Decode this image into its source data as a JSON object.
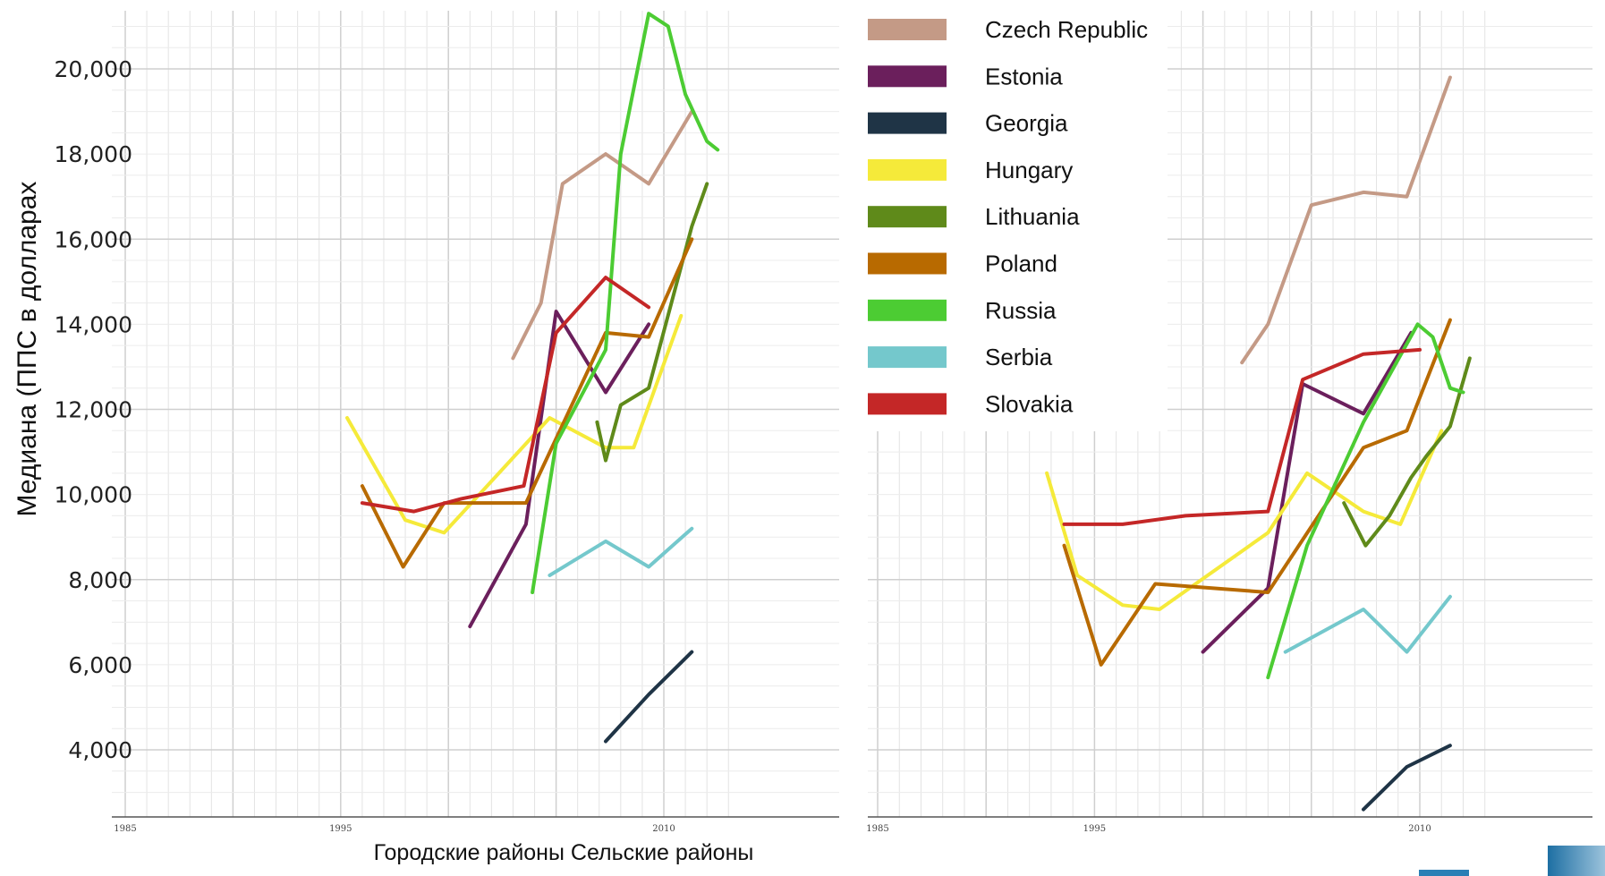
{
  "chart_data": {
    "type": "line",
    "ylabel": "Медиана (ППС в долларах",
    "xlabel": "Городские районы Сельские районы",
    "yticks": [
      "4,000",
      "6,000",
      "8,000",
      "10,000",
      "12,000",
      "14,000",
      "16,000",
      "18,000",
      "20,000"
    ],
    "xticks": [
      "1985",
      "1995",
      "2010"
    ],
    "legend": [
      {
        "name": "Czech Republic",
        "color": "#c49a86"
      },
      {
        "name": "Estonia",
        "color": "#6b1f5c"
      },
      {
        "name": "Georgia",
        "color": "#1f3446"
      },
      {
        "name": "Hungary",
        "color": "#f5ea3a"
      },
      {
        "name": "Lithuania",
        "color": "#5f8a1a"
      },
      {
        "name": "Poland",
        "color": "#b86a00"
      },
      {
        "name": "Russia",
        "color": "#4ccc33"
      },
      {
        "name": "Serbia",
        "color": "#74c8cc"
      },
      {
        "name": "Slovakia",
        "color": "#c42727"
      }
    ],
    "panels": [
      {
        "panel": "urban",
        "series": [
          {
            "country": "Czech Republic",
            "points": [
              [
                2003,
                13200
              ],
              [
                2004.3,
                14500
              ],
              [
                2005.3,
                17300
              ],
              [
                2007.3,
                18000
              ],
              [
                2009.3,
                17300
              ],
              [
                2011.3,
                19000
              ]
            ]
          },
          {
            "country": "Estonia",
            "points": [
              [
                2001,
                6900
              ],
              [
                2003.6,
                9300
              ],
              [
                2005,
                14300
              ],
              [
                2007.3,
                12400
              ],
              [
                2009.3,
                14000
              ]
            ]
          },
          {
            "country": "Georgia",
            "points": [
              [
                2007.3,
                4200
              ],
              [
                2009.3,
                5300
              ],
              [
                2011.3,
                6300
              ]
            ]
          },
          {
            "country": "Hungary",
            "points": [
              [
                1995.3,
                11800
              ],
              [
                1998,
                9400
              ],
              [
                1999.8,
                9100
              ],
              [
                2004.7,
                11800
              ],
              [
                2007.3,
                11100
              ],
              [
                2008.6,
                11100
              ],
              [
                2010.8,
                14200
              ]
            ]
          },
          {
            "country": "Lithuania",
            "points": [
              [
                2006.9,
                11700
              ],
              [
                2007.3,
                10800
              ],
              [
                2008,
                12100
              ],
              [
                2009.3,
                12500
              ],
              [
                2011.3,
                16300
              ],
              [
                2012,
                17300
              ]
            ]
          },
          {
            "country": "Poland",
            "points": [
              [
                1996,
                10200
              ],
              [
                1997.9,
                8300
              ],
              [
                1999.8,
                9800
              ],
              [
                2003.6,
                9800
              ],
              [
                2007.3,
                13800
              ],
              [
                2009.3,
                13700
              ],
              [
                2011.3,
                16000
              ]
            ]
          },
          {
            "country": "Russia",
            "points": [
              [
                2003.9,
                7700
              ],
              [
                2005,
                11200
              ],
              [
                2007.3,
                13400
              ],
              [
                2008,
                18000
              ],
              [
                2009.3,
                21300
              ],
              [
                2010.2,
                21000
              ],
              [
                2011,
                19400
              ],
              [
                2012,
                18300
              ],
              [
                2012.5,
                18100
              ]
            ]
          },
          {
            "country": "Serbia",
            "points": [
              [
                2004.7,
                8100
              ],
              [
                2007.3,
                8900
              ],
              [
                2009.3,
                8300
              ],
              [
                2011.3,
                9200
              ]
            ]
          },
          {
            "country": "Slovakia",
            "points": [
              [
                1996,
                9800
              ],
              [
                1998.4,
                9600
              ],
              [
                2000.6,
                9900
              ],
              [
                2003.5,
                10200
              ],
              [
                2005,
                13800
              ],
              [
                2007.3,
                15100
              ],
              [
                2009.3,
                14400
              ]
            ]
          }
        ]
      },
      {
        "panel": "rural",
        "series": [
          {
            "country": "Czech Republic",
            "points": [
              [
                2001.8,
                13100
              ],
              [
                2003,
                14000
              ],
              [
                2005,
                16800
              ],
              [
                2007.4,
                17100
              ],
              [
                2009.4,
                17000
              ],
              [
                2011.4,
                19800
              ]
            ]
          },
          {
            "country": "Estonia",
            "points": [
              [
                2000,
                6300
              ],
              [
                2003,
                7800
              ],
              [
                2004.6,
                12600
              ],
              [
                2007.4,
                11900
              ],
              [
                2009.6,
                13800
              ]
            ]
          },
          {
            "country": "Georgia",
            "points": [
              [
                2007.4,
                2600
              ],
              [
                2009.4,
                3600
              ],
              [
                2011.4,
                4100
              ]
            ]
          },
          {
            "country": "Hungary",
            "points": [
              [
                1992.8,
                10500
              ],
              [
                1994.2,
                8100
              ],
              [
                1996.3,
                7400
              ],
              [
                1998,
                7300
              ],
              [
                2003,
                9100
              ],
              [
                2004.8,
                10500
              ],
              [
                2007.4,
                9600
              ],
              [
                2009.1,
                9300
              ],
              [
                2011,
                11500
              ]
            ]
          },
          {
            "country": "Lithuania",
            "points": [
              [
                2006.5,
                9800
              ],
              [
                2007.5,
                8800
              ],
              [
                2008.6,
                9500
              ],
              [
                2009.6,
                10400
              ],
              [
                2010.3,
                10900
              ],
              [
                2011.4,
                11600
              ],
              [
                2012.3,
                13200
              ]
            ]
          },
          {
            "country": "Poland",
            "points": [
              [
                1993.6,
                8800
              ],
              [
                1995.3,
                6000
              ],
              [
                1997.8,
                7900
              ],
              [
                2003,
                7700
              ],
              [
                2007.4,
                11100
              ],
              [
                2009.4,
                11500
              ],
              [
                2011.4,
                14100
              ]
            ]
          },
          {
            "country": "Russia",
            "points": [
              [
                2003,
                5700
              ],
              [
                2004.8,
                8800
              ],
              [
                2007.4,
                11700
              ],
              [
                2009.9,
                14000
              ],
              [
                2010.6,
                13700
              ],
              [
                2011.4,
                12500
              ],
              [
                2012,
                12400
              ]
            ]
          },
          {
            "country": "Serbia",
            "points": [
              [
                2003.8,
                6300
              ],
              [
                2007.4,
                7300
              ],
              [
                2009.4,
                6300
              ],
              [
                2011.4,
                7600
              ]
            ]
          },
          {
            "country": "Slovakia",
            "points": [
              [
                1993.6,
                9300
              ],
              [
                1996.3,
                9300
              ],
              [
                1999.2,
                9500
              ],
              [
                2003,
                9600
              ],
              [
                2004.6,
                12700
              ],
              [
                2007.4,
                13300
              ],
              [
                2010,
                13400
              ]
            ]
          }
        ]
      }
    ]
  }
}
